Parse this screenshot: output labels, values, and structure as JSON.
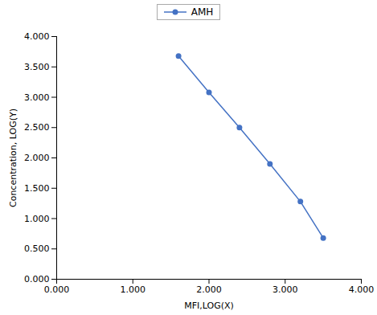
{
  "chart_data": {
    "type": "line",
    "x": [
      1.6,
      2.0,
      2.4,
      2.8,
      3.2,
      3.5
    ],
    "series": [
      {
        "name": "AMH",
        "color": "#4472C4",
        "marker": "circle",
        "values": [
          3.68,
          3.08,
          2.5,
          1.9,
          1.28,
          0.68
        ]
      }
    ],
    "xlabel": "MFI,LOG(X)",
    "ylabel": "Concentration, LOG(Y)",
    "xlim": [
      0.0,
      4.0
    ],
    "ylim": [
      0.0,
      4.0
    ],
    "xticks": [
      {
        "value": 0.0,
        "label": "0.000"
      },
      {
        "value": 1.0,
        "label": "1.000"
      },
      {
        "value": 2.0,
        "label": "2.000"
      },
      {
        "value": 3.0,
        "label": "3.000"
      },
      {
        "value": 4.0,
        "label": "4.000"
      }
    ],
    "yticks": [
      {
        "value": 0.0,
        "label": "0.000"
      },
      {
        "value": 0.5,
        "label": "0.500"
      },
      {
        "value": 1.0,
        "label": "1.000"
      },
      {
        "value": 1.5,
        "label": "1.500"
      },
      {
        "value": 2.0,
        "label": "2.000"
      },
      {
        "value": 2.5,
        "label": "2.500"
      },
      {
        "value": 3.0,
        "label": "3.000"
      },
      {
        "value": 3.5,
        "label": "3.500"
      },
      {
        "value": 4.0,
        "label": "4.000"
      }
    ],
    "legend": "top",
    "grid": false
  }
}
